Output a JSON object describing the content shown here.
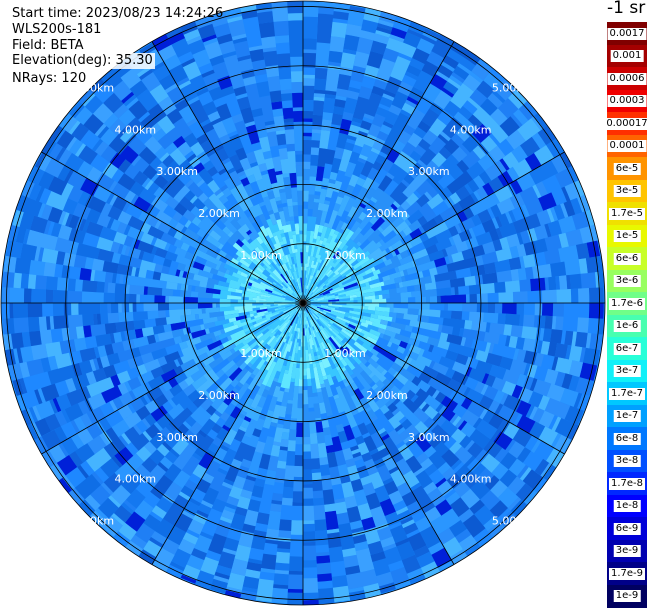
{
  "info": {
    "start_time": "Start time: 2023/08/23 14:24:26",
    "instrument": "WLS200s-181",
    "field": "Field: BETA",
    "elevation": "Elevation(deg): 35.30",
    "nrays": "NRays: 120"
  },
  "chart_data": {
    "type": "heatmap",
    "projection": "polar-ppi",
    "range_rings_km": [
      1,
      2,
      3,
      4,
      5
    ],
    "ring_labels": [
      "1.00km",
      "2.00km",
      "3.00km",
      "4.00km",
      "5.00km"
    ],
    "max_range_km": 5.0,
    "nrays": 120,
    "spokes_deg": [
      0,
      30,
      60,
      90,
      120,
      150,
      180,
      210,
      240,
      270,
      300,
      330
    ],
    "colorbar": {
      "title": "-1 sr",
      "labels": [
        "0.0017",
        "0.001",
        "0.0006",
        "0.0003",
        "0.00017",
        "0.0001",
        "6e-5",
        "3e-5",
        "1.7e-5",
        "1e-5",
        "6e-6",
        "3e-6",
        "1.7e-6",
        "1e-6",
        "6e-7",
        "3e-7",
        "1.7e-7",
        "1e-7",
        "6e-8",
        "3e-8",
        "1.7e-8",
        "1e-8",
        "6e-9",
        "3e-9",
        "1.7e-9",
        "1e-9"
      ],
      "colors": [
        "#800000",
        "#a40000",
        "#cc0000",
        "#f00000",
        "#ff3000",
        "#ff6400",
        "#ff9400",
        "#ffc400",
        "#f0e000",
        "#e8f800",
        "#c8ff28",
        "#98ff60",
        "#70ff88",
        "#48ffb0",
        "#28ffd8",
        "#10f0f8",
        "#00c8ff",
        "#00a0ff",
        "#0078ff",
        "#0050ff",
        "#0028ff",
        "#0000ff",
        "#0000d8",
        "#0000b0",
        "#000088",
        "#000060"
      ]
    }
  }
}
